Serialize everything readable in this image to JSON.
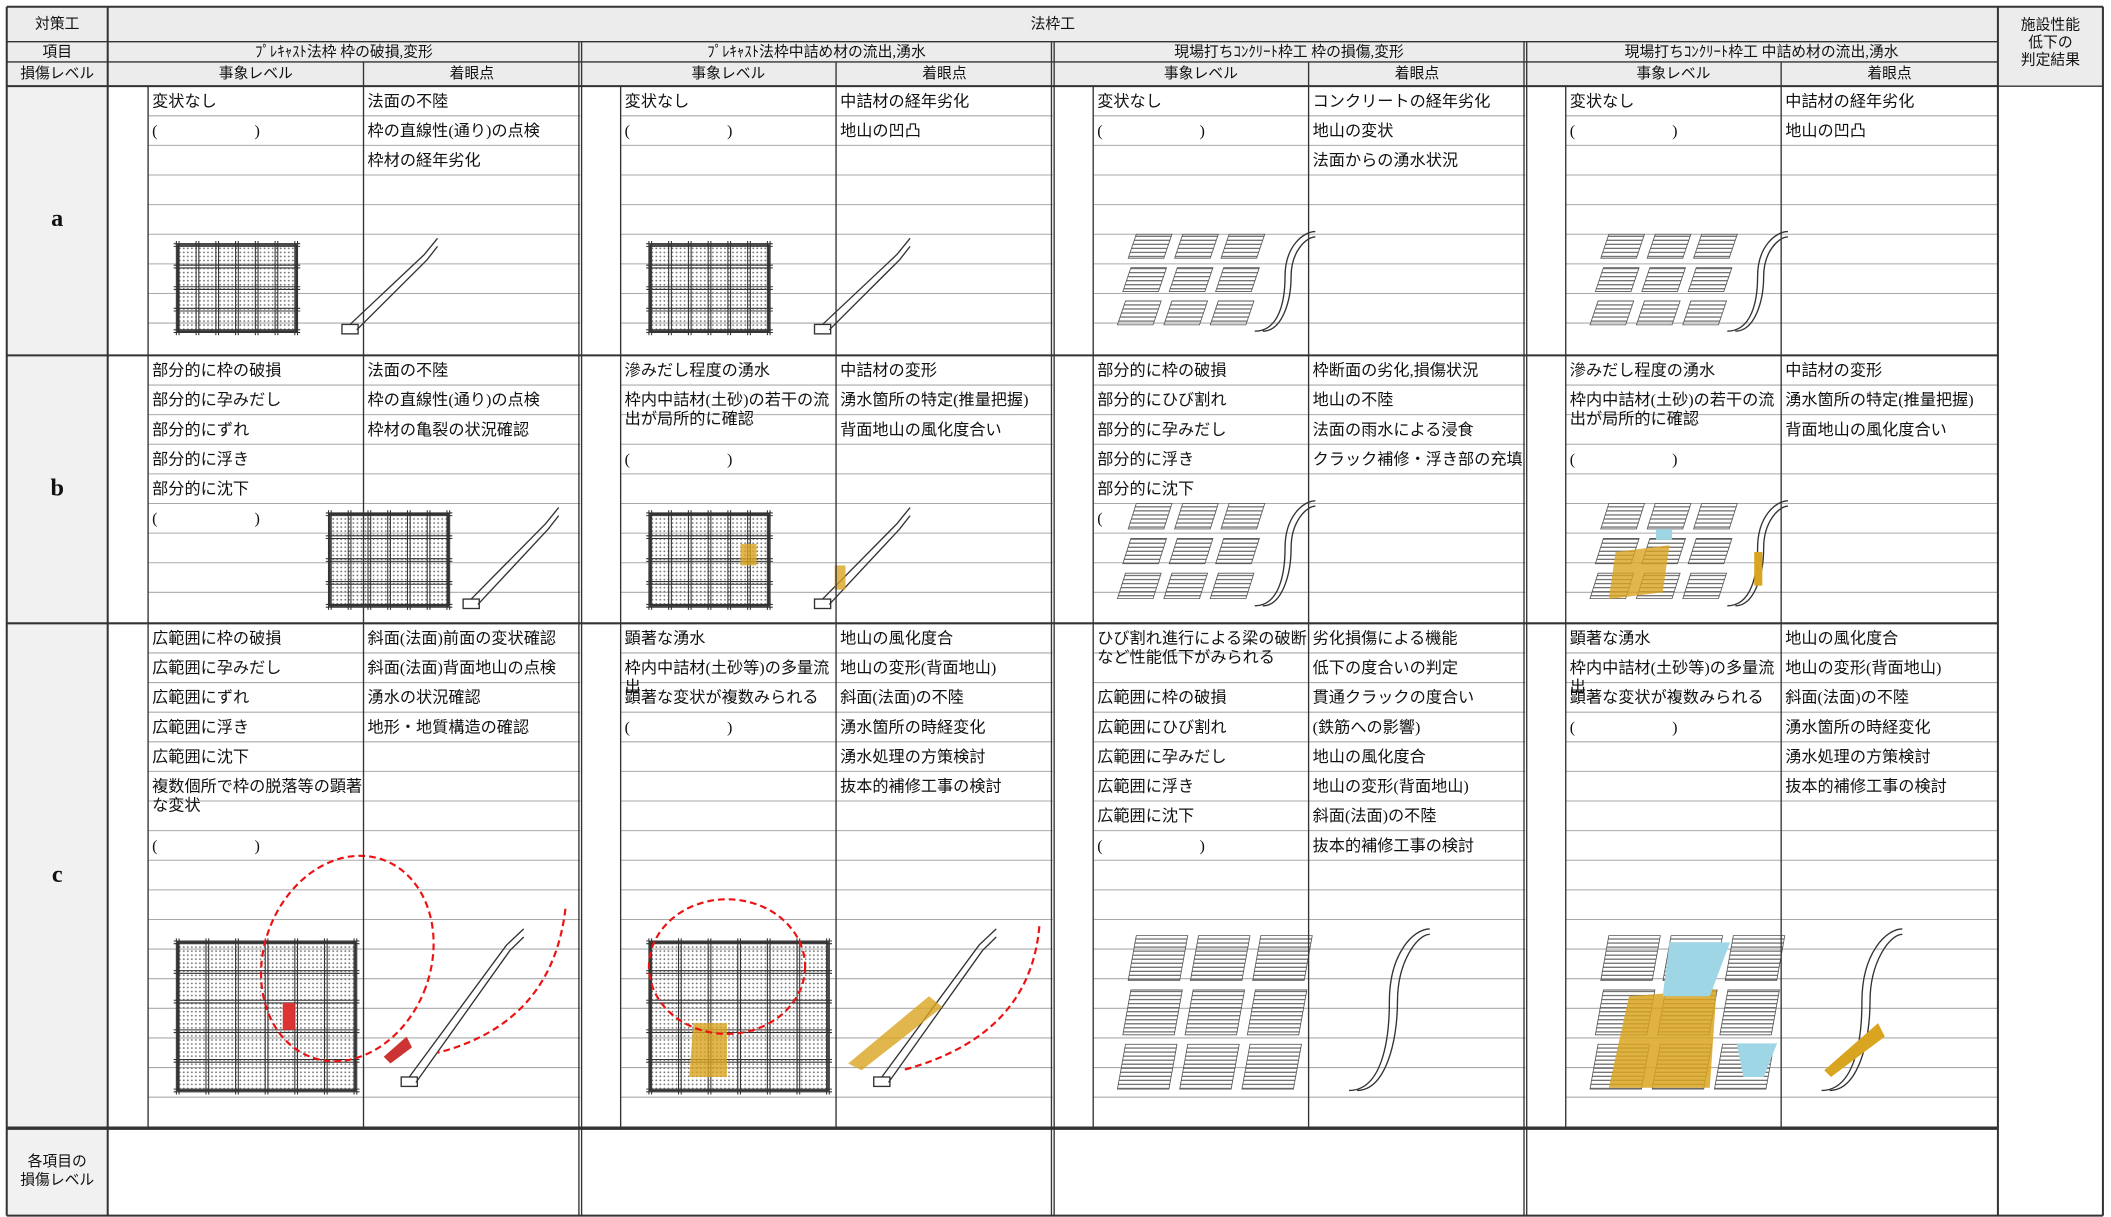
{
  "header": {
    "countermeasure_label": "対策工",
    "countermeasure": "法枠工",
    "item_label": "項目",
    "level_label": "損傷レベル",
    "event_header": "事象レベル",
    "point_header": "着眼点",
    "result_label": [
      "施設性能",
      "低下の",
      "判定結果"
    ]
  },
  "items": [
    "ﾌﾟﾚｷｬｽﾄ法枠 枠の破損,変形",
    "ﾌﾟﾚｷｬｽﾄ法枠中詰め材の流出,湧水",
    "現場打ちｺﾝｸﾘｰﾄ枠工 枠の損傷,変形",
    "現場打ちｺﾝｸﾘｰﾄ枠工 中詰め材の流出,湧水"
  ],
  "levels": [
    {
      "label": "a",
      "cells": [
        {
          "events": [
            "変状なし",
            "(　　　　　　)"
          ],
          "points": [
            "法面の不陸",
            "枠の直線性(通り)の点検",
            "枠材の経年劣化"
          ]
        },
        {
          "events": [
            "変状なし",
            "(　　　　　　)"
          ],
          "points": [
            "中詰材の経年劣化",
            "地山の凹凸"
          ]
        },
        {
          "events": [
            "変状なし",
            "(　　　　　　)"
          ],
          "points": [
            "コンクリートの経年劣化",
            "地山の変状",
            "法面からの湧水状況"
          ]
        },
        {
          "events": [
            "変状なし",
            "(　　　　　　)"
          ],
          "points": [
            "中詰材の経年劣化",
            "地山の凹凸"
          ]
        }
      ]
    },
    {
      "label": "b",
      "cells": [
        {
          "events": [
            "部分的に枠の破損",
            "部分的に孕みだし",
            "部分的にずれ",
            "部分的に浮き",
            "部分的に沈下",
            "(　　　　　　)"
          ],
          "points": [
            "法面の不陸",
            "枠の直線性(通り)の点検",
            "枠材の亀裂の状況確認"
          ]
        },
        {
          "events": [
            "滲みだし程度の湧水",
            "枠内中詰材(土砂)の若干の流出が局所的に確認",
            "(　　　　　　)"
          ],
          "points": [
            "中詰材の変形",
            "湧水箇所の特定(推量把握)",
            "背面地山の風化度合い"
          ]
        },
        {
          "events": [
            "部分的に枠の破損",
            "部分的にひび割れ",
            "部分的に孕みだし",
            "部分的に浮き",
            "部分的に沈下",
            "("
          ],
          "points": [
            "枠断面の劣化,損傷状況",
            "地山の不陸",
            "法面の雨水による浸食",
            "クラック補修・浮き部の充填"
          ]
        },
        {
          "events": [
            "滲みだし程度の湧水",
            "枠内中詰材(土砂)の若干の流出が局所的に確認",
            "(　　　　　　)"
          ],
          "points": [
            "中詰材の変形",
            "湧水箇所の特定(推量把握)",
            "背面地山の風化度合い"
          ]
        }
      ]
    },
    {
      "label": "c",
      "cells": [
        {
          "events": [
            "広範囲に枠の破損",
            "広範囲に孕みだし",
            "広範囲にずれ",
            "広範囲に浮き",
            "広範囲に沈下",
            "複数個所で枠の脱落等の顕著な変状",
            "(　　　　　　)"
          ],
          "points": [
            "斜面(法面)前面の変状確認",
            "斜面(法面)背面地山の点検",
            "湧水の状況確認",
            "地形・地質構造の確認"
          ]
        },
        {
          "events": [
            "顕著な湧水",
            "枠内中詰材(土砂等)の多量流出",
            "顕著な変状が複数みられる",
            "(　　　　　　)"
          ],
          "points": [
            "地山の風化度合",
            "地山の変形(背面地山)",
            "斜面(法面)の不陸",
            "湧水箇所の時経変化",
            "湧水処理の方策検討",
            "抜本的補修工事の検討"
          ]
        },
        {
          "events": [
            "ひび割れ進行による梁の破断など性能低下がみられる",
            "広範囲に枠の破損",
            "広範囲にひび割れ",
            "広範囲に孕みだし",
            "広範囲に浮き",
            "広範囲に沈下",
            "(　　　　　　)"
          ],
          "points": [
            "劣化損傷による機能",
            "低下の度合いの判定",
            "貫通クラックの度合い",
            "(鉄筋への影響)",
            "地山の風化度合",
            "地山の変形(背面地山)",
            "斜面(法面)の不陸",
            "抜本的補修工事の検討"
          ]
        },
        {
          "events": [
            "顕著な湧水",
            "枠内中詰材(土砂等)の多量流出",
            "顕著な変状が複数みられる",
            "(　　　　　　)"
          ],
          "points": [
            "地山の風化度合",
            "地山の変形(背面地山)",
            "斜面(法面)の不陸",
            "湧水箇所の時経変化",
            "湧水処理の方策検討",
            "抜本的補修工事の検討"
          ]
        }
      ]
    }
  ],
  "footer": {
    "label": [
      "各項目の",
      "損傷レベル"
    ]
  }
}
